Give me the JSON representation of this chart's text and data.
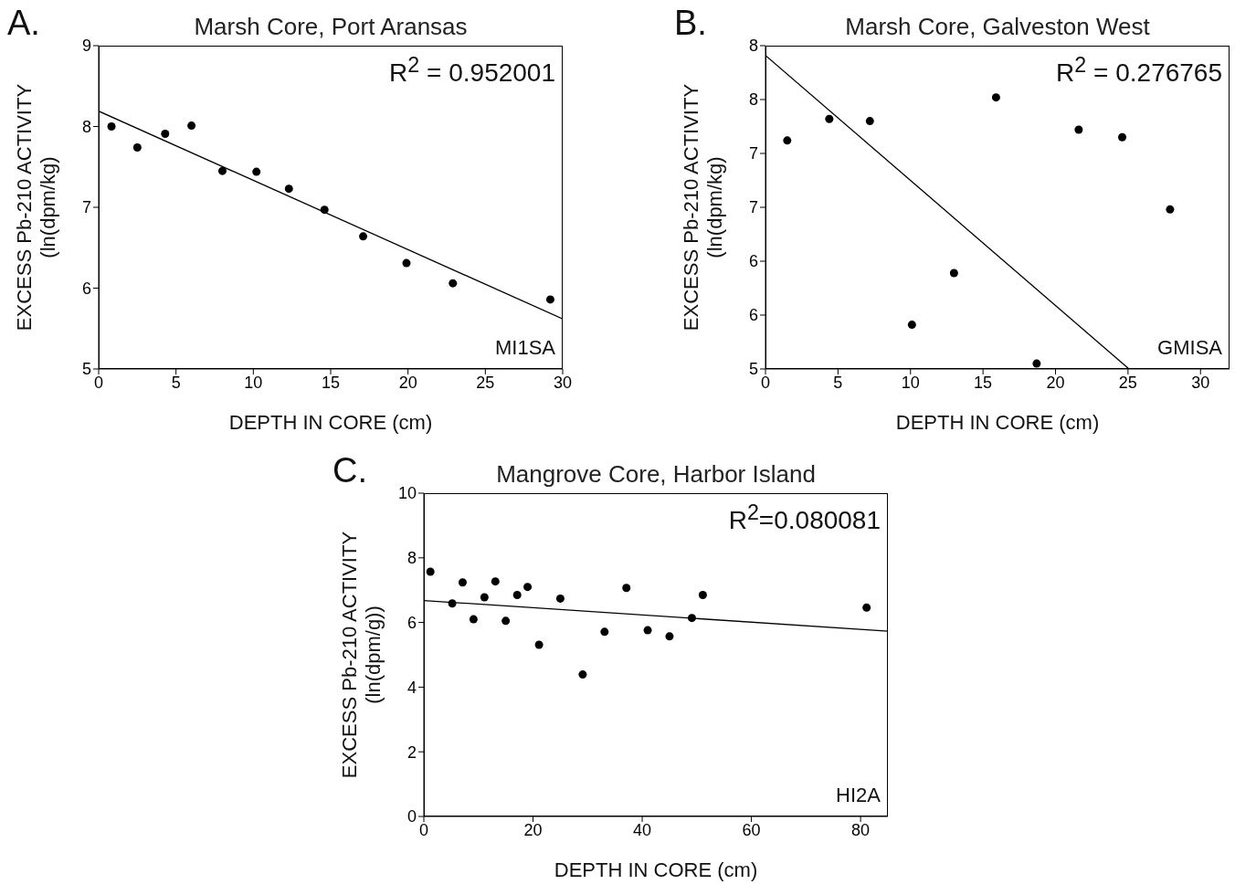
{
  "chart_data": [
    {
      "type": "scatter",
      "title": "Marsh Core, Port Aransas",
      "xlabel": "DEPTH IN CORE (cm)",
      "ylabel": "EXCESS Pb-210 ACTIVITY\n(ln(dpm/kg)",
      "annotations": [
        "R$^{2}$ = 0.952001",
        "MI1SA",
        "A."
      ],
      "xlim": [
        0,
        30
      ],
      "xticks": [
        0,
        5,
        10,
        15,
        20,
        25,
        30
      ],
      "ylim": [
        5,
        9
      ],
      "yticks": [
        5,
        6,
        7,
        8,
        9
      ],
      "series": [
        {
          "marker": "circle",
          "color": "#000000",
          "x": [
            0.83,
            2.5,
            4.3,
            6.0,
            8.0,
            10.2,
            12.3,
            14.6,
            17.1,
            19.9,
            22.9,
            29.2
          ],
          "values": [
            8.0,
            7.74,
            7.91,
            8.01,
            7.45,
            7.44,
            7.23,
            6.97,
            6.64,
            6.31,
            6.06,
            5.86
          ]
        },
        {
          "type": "line",
          "marker": "none",
          "color": "#000000",
          "line_style": "solid",
          "x": [
            0,
            30
          ],
          "values": [
            8.19,
            5.62
          ]
        }
      ]
    },
    {
      "type": "scatter",
      "title": "Marsh Core, Galveston West",
      "xlabel": "DEPTH IN CORE (cm)",
      "ylabel": "EXCESS Pb-210 ACTIVITY\n(ln(dpm/kg)",
      "annotations": [
        "R$^{2}$ = 0.276765",
        "GMISA",
        "B."
      ],
      "xlim": [
        0,
        32
      ],
      "xticks": [
        0,
        5,
        10,
        15,
        20,
        25,
        30
      ],
      "ylim": [
        5,
        8
      ],
      "yticks": [
        5,
        {
          "value": 5.5,
          "label": "6"
        },
        6,
        {
          "value": 6.5,
          "label": "7"
        },
        7,
        {
          "value": 7.5,
          "label": "8"
        },
        8
      ],
      "series": [
        {
          "marker": "circle",
          "color": "#000000",
          "x": [
            1.5,
            4.4,
            7.2,
            10.1,
            13.0,
            15.9,
            18.7,
            21.6,
            24.6,
            27.9
          ],
          "values": [
            7.12,
            7.32,
            7.3,
            5.41,
            5.89,
            7.52,
            5.05,
            7.22,
            7.15,
            6.48
          ]
        },
        {
          "type": "line",
          "marker": "none",
          "color": "#000000",
          "line_style": "solid",
          "x": [
            0,
            25.07
          ],
          "values": [
            7.91,
            5
          ]
        }
      ]
    },
    {
      "type": "scatter",
      "title": "Mangrove Core, Harbor Island",
      "xlabel": "DEPTH IN CORE (cm)",
      "ylabel": "EXCESS Pb-210 ACTIVITY\n(ln(dpm/g))",
      "annotations": [
        "R$^{2}$=0.080081",
        "HI2A",
        "C."
      ],
      "xlim": [
        0,
        85
      ],
      "xticks": [
        0,
        20,
        40,
        60,
        80
      ],
      "ylim": [
        0,
        10
      ],
      "yticks": [
        0,
        2,
        4,
        6,
        8,
        10
      ],
      "series": [
        {
          "marker": "circle",
          "color": "#000000",
          "x": [
            1.2,
            5.2,
            7.1,
            9.1,
            11.1,
            13.1,
            15.0,
            17.1,
            19.0,
            21.1,
            25.0,
            29.1,
            33.1,
            37.1,
            41.0,
            45.0,
            49.1,
            51.1,
            81.1
          ],
          "values": [
            7.57,
            6.59,
            7.24,
            6.1,
            6.78,
            7.27,
            6.05,
            6.85,
            7.1,
            5.31,
            6.74,
            4.39,
            5.71,
            7.07,
            5.76,
            5.57,
            6.14,
            6.85,
            6.46
          ]
        },
        {
          "type": "line",
          "marker": "none",
          "color": "#000000",
          "line_style": "solid",
          "x": [
            0,
            85
          ],
          "values": [
            6.68,
            5.73
          ]
        }
      ]
    }
  ]
}
